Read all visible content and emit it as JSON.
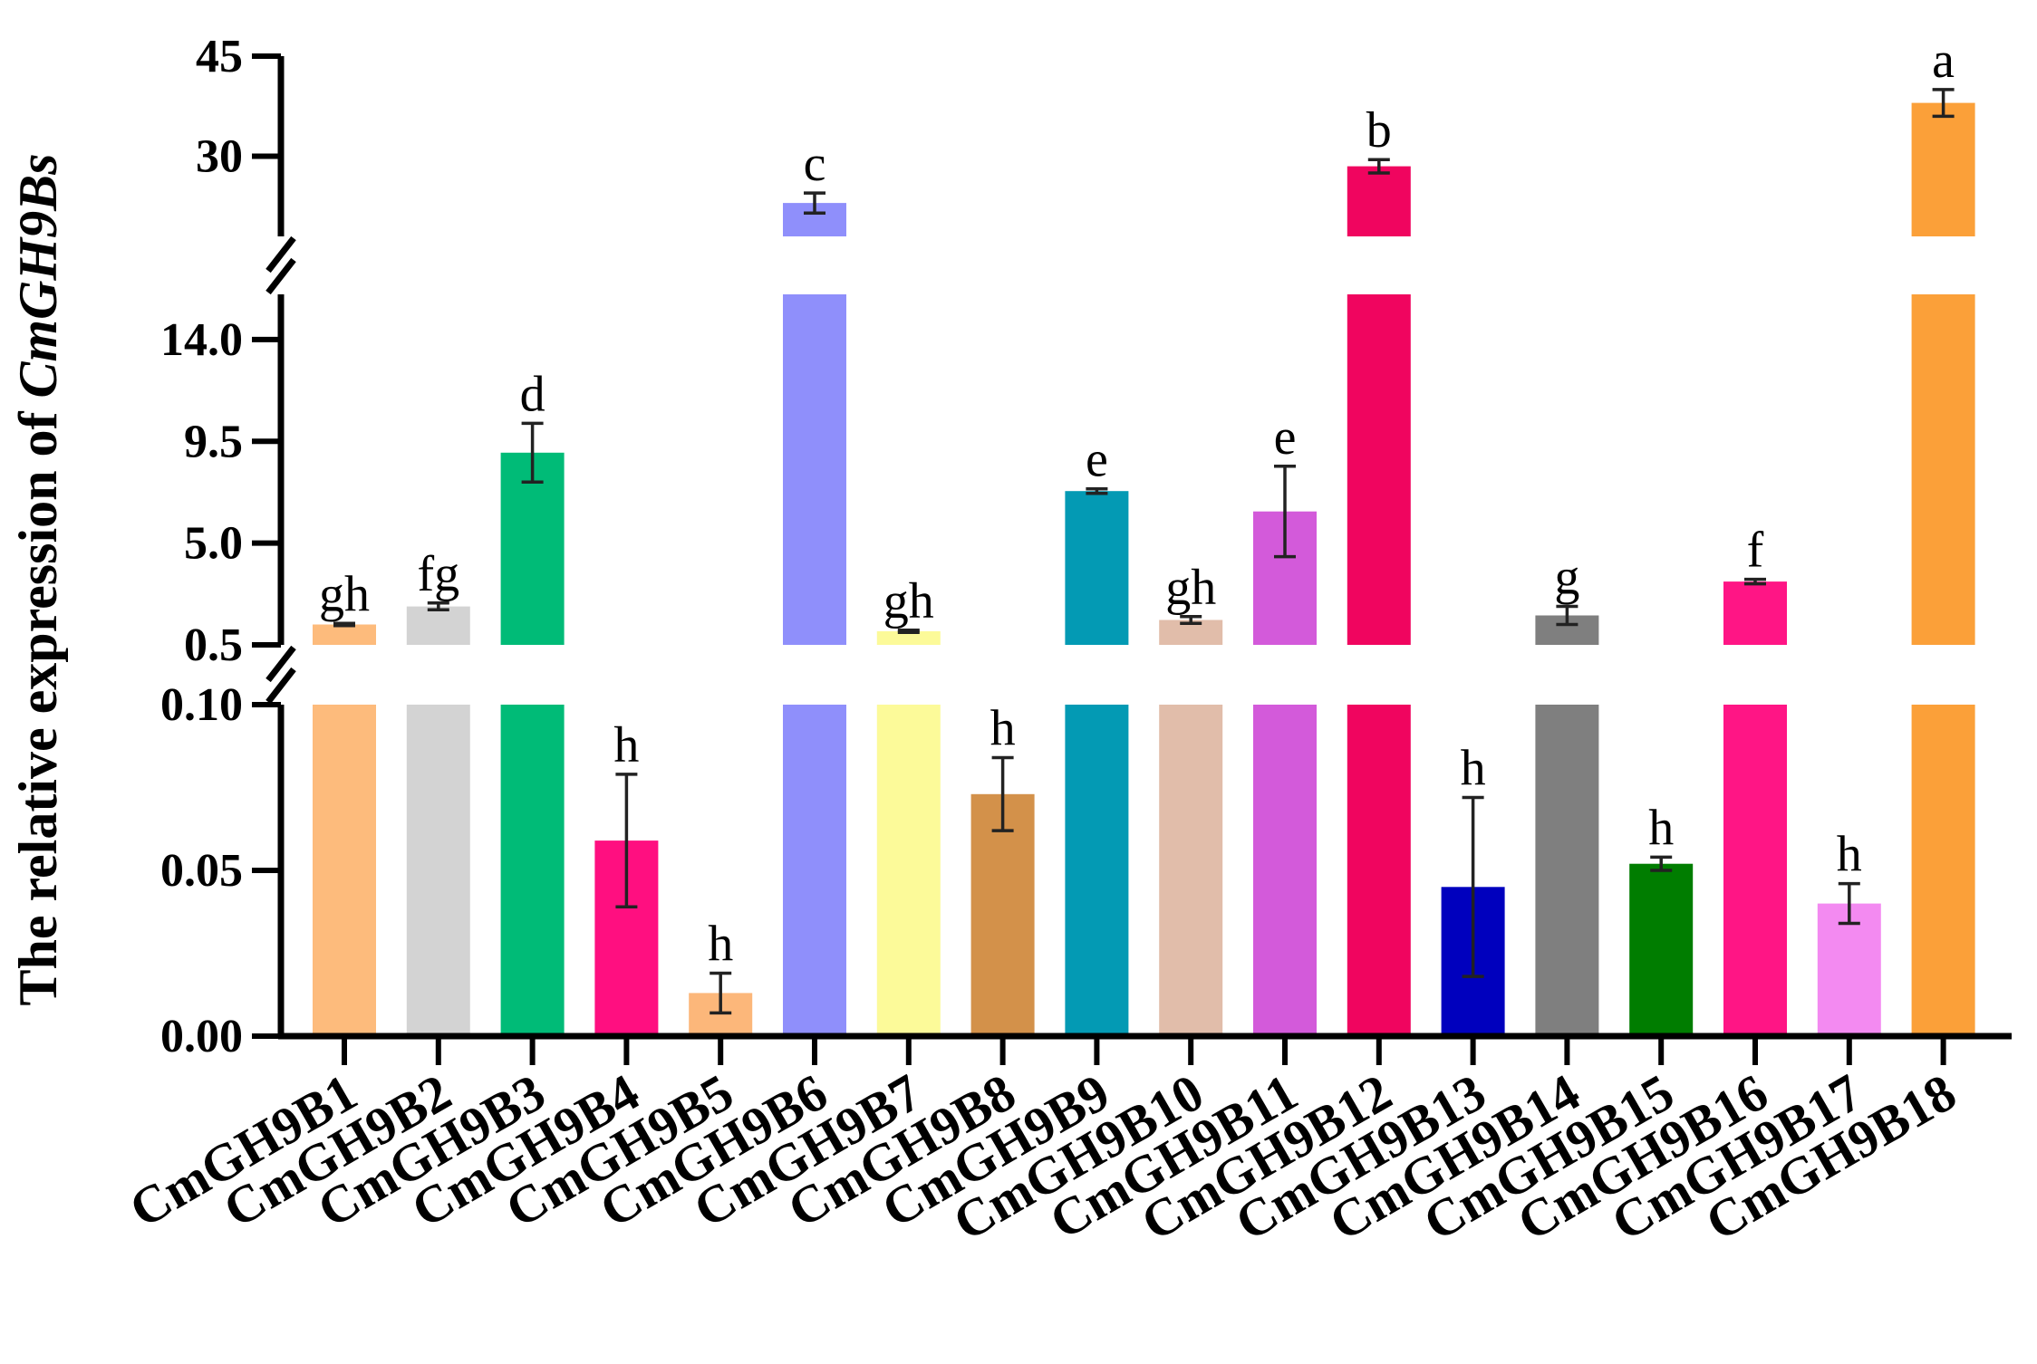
{
  "chart_data": {
    "type": "bar",
    "title": "",
    "xlabel": "",
    "ylabel_prefix": "The relative expression of ",
    "ylabel_italic": "CmGH9Bs",
    "broken_axis": true,
    "segments": [
      {
        "name": "low",
        "ylim": [
          0,
          0.1
        ],
        "ticks": [
          "0.00",
          "0.05",
          "0.10"
        ],
        "tick_values": [
          0,
          0.05,
          0.1
        ]
      },
      {
        "name": "mid",
        "ylim": [
          0.5,
          16
        ],
        "ticks": [
          "0.5",
          "5.0",
          "9.5",
          "14.0"
        ],
        "tick_values": [
          0.5,
          5.0,
          9.5,
          14.0
        ]
      },
      {
        "name": "high",
        "ylim": [
          18,
          45
        ],
        "ticks": [
          "30",
          "45"
        ],
        "tick_values": [
          30,
          45
        ]
      }
    ],
    "categories": [
      "CmGH9B1",
      "CmGH9B2",
      "CmGH9B3",
      "CmGH9B4",
      "CmGH9B5",
      "CmGH9B6",
      "CmGH9B7",
      "CmGH9B8",
      "CmGH9B9",
      "CmGH9B10",
      "CmGH9B11",
      "CmGH9B12",
      "CmGH9B13",
      "CmGH9B14",
      "CmGH9B15",
      "CmGH9B16",
      "CmGH9B17",
      "CmGH9B18"
    ],
    "values": [
      1.4,
      2.2,
      9.0,
      0.059,
      0.013,
      23.0,
      1.1,
      0.073,
      7.3,
      1.6,
      6.4,
      28.5,
      0.045,
      1.8,
      0.052,
      3.3,
      0.04,
      38.0
    ],
    "errors": [
      0.05,
      0.15,
      1.3,
      0.02,
      0.006,
      1.5,
      0.05,
      0.011,
      0.1,
      0.15,
      2.0,
      1.0,
      0.027,
      0.4,
      0.002,
      0.1,
      0.006,
      2.0
    ],
    "significance": [
      "gh",
      "fg",
      "d",
      "h",
      "h",
      "c",
      "gh",
      "h",
      "e",
      "gh",
      "e",
      "b",
      "h",
      "g",
      "h",
      "f",
      "h",
      "a"
    ],
    "colors": [
      "#FDBB7C",
      "#D3D3D3",
      "#00BB77",
      "#FF0F80",
      "#FCB77A",
      "#8F8FFB",
      "#FCFA99",
      "#D3914A",
      "#039AB4",
      "#E1BDAA",
      "#D35ADA",
      "#F0055F",
      "#0000BE",
      "#7F7F7F",
      "#007D00",
      "#FF1585",
      "#F38AF1",
      "#FBA039"
    ]
  }
}
